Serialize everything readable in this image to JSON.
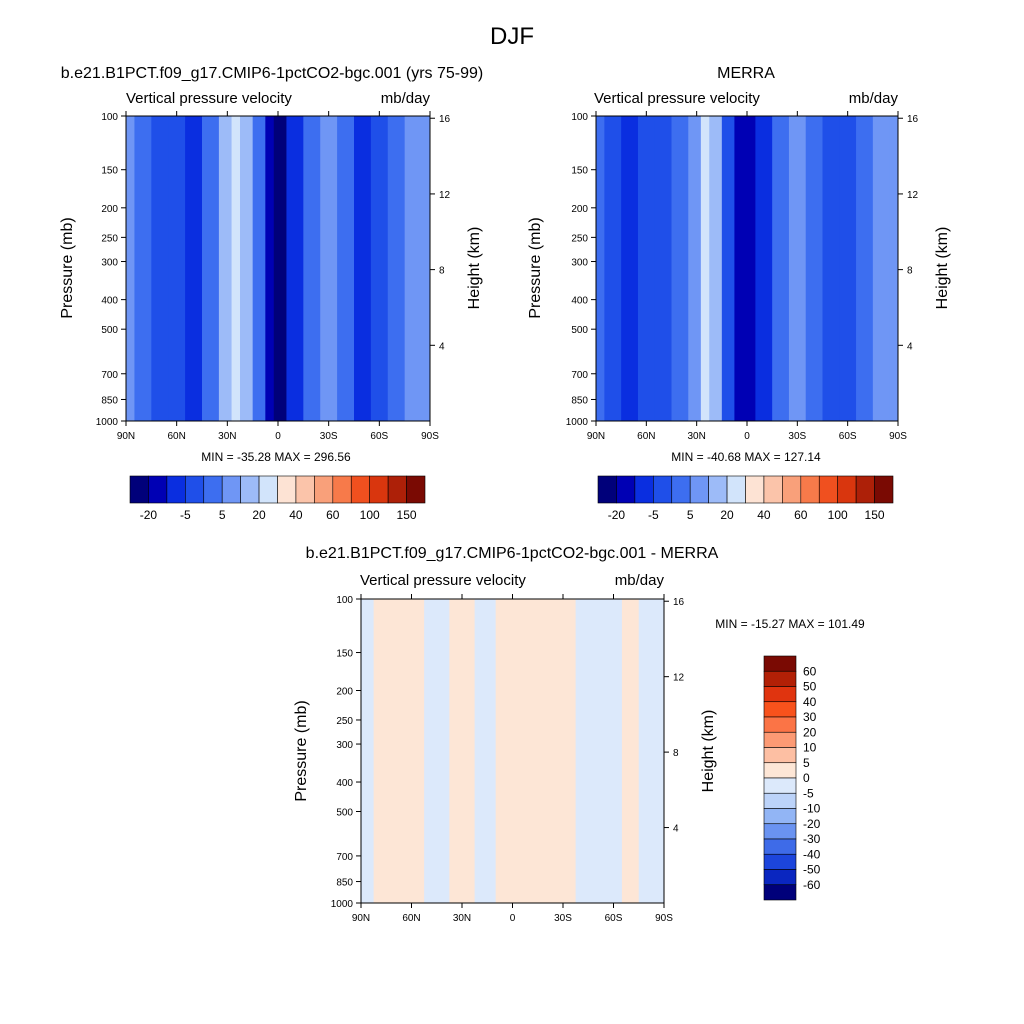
{
  "figure_title": "DJF",
  "chart_data": [
    {
      "type": "heatmap",
      "title": "b.e21.B1PCT.f09_g17.CMIP6-1pctCO2-bgc.001 (yrs 75-99)",
      "subtitle_left": "Vertical pressure velocity",
      "subtitle_right": "mb/day",
      "ylabel": "Pressure (mb)",
      "y2label": "Height (km)",
      "x_ticks": [
        "90N",
        "60N",
        "30N",
        "0",
        "30S",
        "60S",
        "90S"
      ],
      "x_values": [
        90,
        60,
        30,
        0,
        -30,
        -60,
        -90
      ],
      "y_ticks": [
        "100",
        "150",
        "200",
        "250",
        "300",
        "400",
        "500",
        "700",
        "850",
        "1000"
      ],
      "y_values": [
        100,
        150,
        200,
        250,
        300,
        400,
        500,
        700,
        850,
        1000
      ],
      "y2_ticks": [
        "16",
        "12",
        "8",
        "4"
      ],
      "y2_values": [
        16,
        12,
        8,
        4
      ],
      "y_scale": "log",
      "y_range": [
        1000,
        100
      ],
      "x_range": [
        90,
        -90
      ],
      "stats": "MIN = -35.28  MAX = 296.56",
      "min": -35.28,
      "max": 296.56,
      "colorbar_labels": [
        "-20",
        "-5",
        "5",
        "20",
        "40",
        "60",
        "100",
        "150"
      ],
      "colorbar_orientation": "horizontal",
      "colors": [
        "#00007a",
        "#0000b4",
        "#0a2ee0",
        "#1f4fe9",
        "#3d6ef0",
        "#6f96f5",
        "#9dbbf8",
        "#d2e4fb",
        "#fde3d4",
        "#fbc4aa",
        "#f9a07a",
        "#f77a4a",
        "#f0501f",
        "#d9360e",
        "#ad2008",
        "#7a0a03"
      ],
      "columns": [
        {
          "lat": 90,
          "band": 5
        },
        {
          "lat": 80,
          "band": 4
        },
        {
          "lat": 70,
          "band": 3
        },
        {
          "lat": 60,
          "band": 3
        },
        {
          "lat": 50,
          "band": 2
        },
        {
          "lat": 40,
          "band": 4
        },
        {
          "lat": 30,
          "band": 6
        },
        {
          "lat": 25,
          "band": 7
        },
        {
          "lat": 20,
          "band": 6
        },
        {
          "lat": 10,
          "band": 4
        },
        {
          "lat": 5,
          "band": 1
        },
        {
          "lat": 0,
          "band": 0
        },
        {
          "lat": -10,
          "band": 2
        },
        {
          "lat": -20,
          "band": 4
        },
        {
          "lat": -30,
          "band": 5
        },
        {
          "lat": -40,
          "band": 4
        },
        {
          "lat": -50,
          "band": 2
        },
        {
          "lat": -60,
          "band": 3
        },
        {
          "lat": -70,
          "band": 4
        },
        {
          "lat": -80,
          "band": 5
        },
        {
          "lat": -90,
          "band": 5
        }
      ]
    },
    {
      "type": "heatmap",
      "title": "MERRA",
      "subtitle_left": "Vertical pressure velocity",
      "subtitle_right": "mb/day",
      "ylabel": "Pressure (mb)",
      "y2label": "Height (km)",
      "x_ticks": [
        "90N",
        "60N",
        "30N",
        "0",
        "30S",
        "60S",
        "90S"
      ],
      "x_values": [
        90,
        60,
        30,
        0,
        -30,
        -60,
        -90
      ],
      "y_ticks": [
        "100",
        "150",
        "200",
        "250",
        "300",
        "400",
        "500",
        "700",
        "850",
        "1000"
      ],
      "y_values": [
        100,
        150,
        200,
        250,
        300,
        400,
        500,
        700,
        850,
        1000
      ],
      "y2_ticks": [
        "16",
        "12",
        "8",
        "4"
      ],
      "y2_values": [
        16,
        12,
        8,
        4
      ],
      "y_scale": "log",
      "y_range": [
        1000,
        100
      ],
      "x_range": [
        90,
        -90
      ],
      "stats": "MIN = -40.68  MAX = 127.14",
      "min": -40.68,
      "max": 127.14,
      "colorbar_labels": [
        "-20",
        "-5",
        "5",
        "20",
        "40",
        "60",
        "100",
        "150"
      ],
      "colorbar_orientation": "horizontal",
      "colors": [
        "#00007a",
        "#0000b4",
        "#0a2ee0",
        "#1f4fe9",
        "#3d6ef0",
        "#6f96f5",
        "#9dbbf8",
        "#d2e4fb",
        "#fde3d4",
        "#fbc4aa",
        "#f9a07a",
        "#f77a4a",
        "#f0501f",
        "#d9360e",
        "#ad2008",
        "#7a0a03"
      ],
      "columns": [
        {
          "lat": 90,
          "band": 4
        },
        {
          "lat": 80,
          "band": 3
        },
        {
          "lat": 70,
          "band": 2
        },
        {
          "lat": 60,
          "band": 3
        },
        {
          "lat": 50,
          "band": 3
        },
        {
          "lat": 40,
          "band": 4
        },
        {
          "lat": 30,
          "band": 5
        },
        {
          "lat": 25,
          "band": 7
        },
        {
          "lat": 20,
          "band": 6
        },
        {
          "lat": 10,
          "band": 3
        },
        {
          "lat": 5,
          "band": 1
        },
        {
          "lat": 0,
          "band": 1
        },
        {
          "lat": -10,
          "band": 2
        },
        {
          "lat": -20,
          "band": 4
        },
        {
          "lat": -30,
          "band": 5
        },
        {
          "lat": -40,
          "band": 4
        },
        {
          "lat": -50,
          "band": 3
        },
        {
          "lat": -60,
          "band": 3
        },
        {
          "lat": -70,
          "band": 4
        },
        {
          "lat": -80,
          "band": 5
        },
        {
          "lat": -90,
          "band": 5
        }
      ]
    },
    {
      "type": "heatmap",
      "title": "b.e21.B1PCT.f09_g17.CMIP6-1pctCO2-bgc.001 - MERRA",
      "subtitle_left": "Vertical pressure velocity",
      "subtitle_right": "mb/day",
      "ylabel": "Pressure (mb)",
      "y2label": "Height (km)",
      "x_ticks": [
        "90N",
        "60N",
        "30N",
        "0",
        "30S",
        "60S",
        "90S"
      ],
      "x_values": [
        90,
        60,
        30,
        0,
        -30,
        -60,
        -90
      ],
      "y_ticks": [
        "100",
        "150",
        "200",
        "250",
        "300",
        "400",
        "500",
        "700",
        "850",
        "1000"
      ],
      "y_values": [
        100,
        150,
        200,
        250,
        300,
        400,
        500,
        700,
        850,
        1000
      ],
      "y2_ticks": [
        "16",
        "12",
        "8",
        "4"
      ],
      "y2_values": [
        16,
        12,
        8,
        4
      ],
      "y_scale": "log",
      "y_range": [
        1000,
        100
      ],
      "x_range": [
        90,
        -90
      ],
      "stats": "MIN = -15.27  MAX = 101.49",
      "min": -15.27,
      "max": 101.49,
      "colorbar_labels": [
        "60",
        "50",
        "40",
        "30",
        "20",
        "10",
        "5",
        "0",
        "-5",
        "-10",
        "-20",
        "-30",
        "-40",
        "-50",
        "-60"
      ],
      "colorbar_orientation": "vertical",
      "colors": [
        "#7a0a03",
        "#b22006",
        "#e0340f",
        "#f8521c",
        "#fb7446",
        "#fc9a74",
        "#fdbfa3",
        "#fde6d6",
        "#dce9fb",
        "#bcd3f9",
        "#92b5f5",
        "#6a93f1",
        "#3e6be8",
        "#1c45dc",
        "#0a26c0",
        "#00007a"
      ],
      "columns": [
        {
          "lat": 90,
          "band": 8
        },
        {
          "lat": 75,
          "band": 7
        },
        {
          "lat": 60,
          "band": 7
        },
        {
          "lat": 45,
          "band": 8
        },
        {
          "lat": 30,
          "band": 7
        },
        {
          "lat": 15,
          "band": 8
        },
        {
          "lat": 5,
          "band": 7
        },
        {
          "lat": 0,
          "band": 7
        },
        {
          "lat": -15,
          "band": 7
        },
        {
          "lat": -30,
          "band": 7
        },
        {
          "lat": -45,
          "band": 8
        },
        {
          "lat": -60,
          "band": 8
        },
        {
          "lat": -70,
          "band": 7
        },
        {
          "lat": -80,
          "band": 8
        },
        {
          "lat": -90,
          "band": 8
        }
      ]
    }
  ]
}
